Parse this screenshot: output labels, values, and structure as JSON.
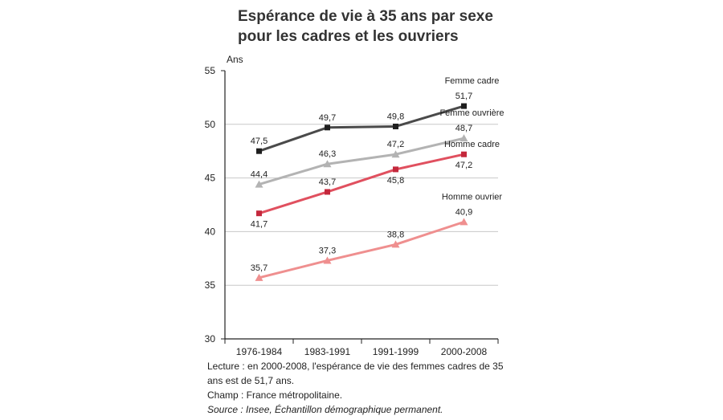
{
  "title_line1": "Espérance de vie à 35 ans par sexe",
  "title_line2": "pour les cadres et les ouvriers",
  "footer": {
    "lecture": "Lecture : en 2000-2008, l'espérance de vie des femmes cadres de 35 ans est de 51,7 ans.",
    "champ": "Champ : France métropolitaine.",
    "source": "Source : Insee, Échantillon démographique permanent."
  },
  "chart_data": {
    "type": "line",
    "title": "Espérance de vie à 35 ans par sexe pour les cadres et les ouvriers",
    "ylabel": "Ans",
    "xlabel": "",
    "ylim": [
      30,
      55
    ],
    "yticks": [
      "30",
      "35",
      "40",
      "45",
      "50",
      "55"
    ],
    "grid": true,
    "categories": [
      "1976-1984",
      "1983-1991",
      "1991-1999",
      "2000-2008"
    ],
    "series": [
      {
        "name": "Femme cadre",
        "values": [
          47.5,
          49.7,
          49.8,
          51.7
        ],
        "labels": [
          "47,5",
          "49,7",
          "49,8",
          "51,7"
        ],
        "color": "#4a4a4a",
        "marker": "square"
      },
      {
        "name": "Femme ouvrière",
        "values": [
          44.4,
          46.3,
          47.2,
          48.7
        ],
        "labels": [
          "44,4",
          "46,3",
          "47,2",
          "48,7"
        ],
        "color": "#b3b3b3",
        "marker": "triangle"
      },
      {
        "name": "Homme cadre",
        "values": [
          41.7,
          43.7,
          45.8,
          47.2
        ],
        "labels": [
          "41,7",
          "43,7",
          "45,8",
          "47,2"
        ],
        "color": "#e0505f",
        "marker": "square"
      },
      {
        "name": "Homme ouvrier",
        "values": [
          35.7,
          37.3,
          38.8,
          40.9
        ],
        "labels": [
          "35,7",
          "37,3",
          "38,8",
          "40,9"
        ],
        "color": "#ef8f8f",
        "marker": "triangle"
      }
    ]
  }
}
